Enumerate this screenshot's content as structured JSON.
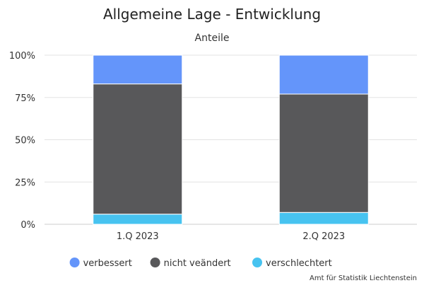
{
  "chart_data": {
    "type": "bar",
    "stacked": true,
    "title": "Allgemeine Lage - Entwicklung",
    "subtitle": "Anteile",
    "categories": [
      "1.Q 2023",
      "2.Q 2023"
    ],
    "series": [
      {
        "name": "verbessert",
        "color": "#6495fa",
        "values": [
          17,
          23
        ]
      },
      {
        "name": "nicht veändert",
        "color": "#58585a",
        "values": [
          77,
          70
        ]
      },
      {
        "name": "verschlechtert",
        "color": "#47c3f0",
        "values": [
          6,
          7
        ]
      }
    ],
    "stack_order_bottom_to_top": [
      "verschlechtert",
      "nicht veändert",
      "verbessert"
    ],
    "ylim": [
      0,
      100
    ],
    "yticks": [
      "0%",
      "25%",
      "50%",
      "75%",
      "100%"
    ],
    "ytick_values": [
      0,
      25,
      50,
      75,
      100
    ],
    "grid": true,
    "legend_position": "bottom"
  },
  "credit": "Amt für Statistik Liechtenstein"
}
